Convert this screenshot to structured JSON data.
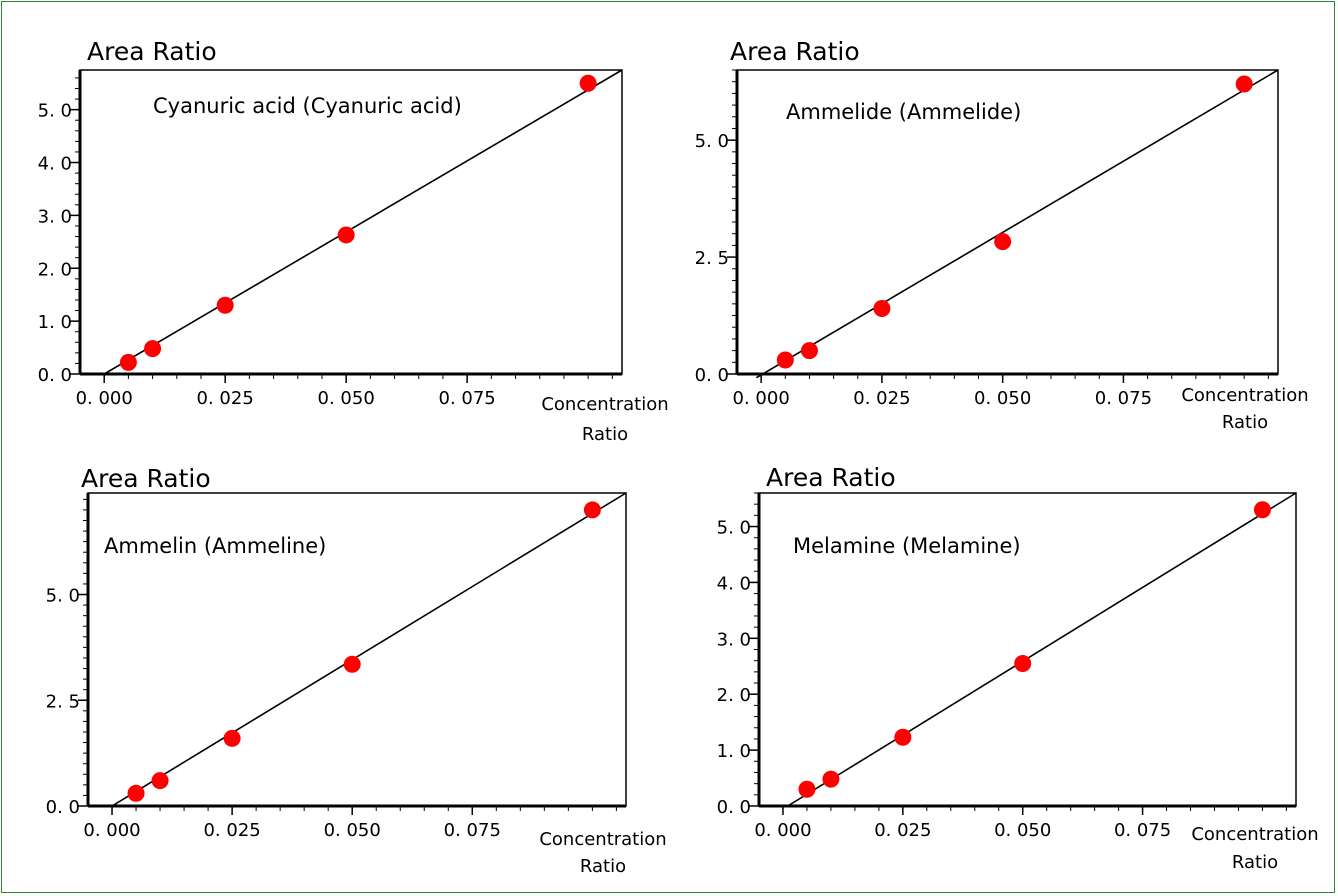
{
  "chart_data": [
    {
      "type": "scatter",
      "ylabel": "Area Ratio",
      "xlabel_lines": [
        "Concentration",
        "Ratio"
      ],
      "annotation": "Cyanuric acid (Cyanuric acid)",
      "xlim": [
        -0.005,
        0.107
      ],
      "ylim": [
        0,
        5.75
      ],
      "x_ticks": [
        0.0,
        0.025,
        0.05,
        0.075
      ],
      "x_tick_labels": [
        "0. 000",
        "0. 025",
        "0. 050",
        "0. 075"
      ],
      "y_ticks": [
        0.0,
        1.0,
        2.0,
        3.0,
        4.0,
        5.0
      ],
      "y_tick_labels": [
        "0. 0",
        "1. 0",
        "2. 0",
        "3. 0",
        "4. 0",
        "5. 0"
      ],
      "points": {
        "x": [
          0.005,
          0.01,
          0.025,
          0.05,
          0.1
        ],
        "y": [
          0.22,
          0.48,
          1.3,
          2.63,
          5.5
        ]
      },
      "fit_line": {
        "x": [
          0.0,
          0.107
        ],
        "y": [
          0.0,
          5.75
        ]
      },
      "marker_color": "#ff0000",
      "line_color": "#000000",
      "grid": false
    },
    {
      "type": "scatter",
      "ylabel": "Area Ratio",
      "xlabel_lines": [
        "Concentration",
        "Ratio"
      ],
      "annotation": "Ammelide (Ammelide)",
      "xlim": [
        -0.005,
        0.107
      ],
      "ylim": [
        0,
        6.5
      ],
      "x_ticks": [
        0.0,
        0.025,
        0.05,
        0.075
      ],
      "x_tick_labels": [
        "0. 000",
        "0. 025",
        "0. 050",
        "0. 075"
      ],
      "y_ticks": [
        0.0,
        2.5,
        5.0
      ],
      "y_tick_labels": [
        "0. 0",
        "2. 5",
        "5. 0"
      ],
      "points": {
        "x": [
          0.005,
          0.01,
          0.025,
          0.05,
          0.1
        ],
        "y": [
          0.3,
          0.5,
          1.4,
          2.83,
          6.2
        ]
      },
      "fit_line": {
        "x": [
          -0.001,
          0.107
        ],
        "y": [
          -0.08,
          6.5
        ]
      },
      "marker_color": "#ff0000",
      "line_color": "#000000",
      "grid": false
    },
    {
      "type": "scatter",
      "ylabel": "Area Ratio",
      "xlabel_lines": [
        "Concentration",
        "Ratio"
      ],
      "annotation": "Ammelin (Ammeline)",
      "xlim": [
        -0.005,
        0.107
      ],
      "ylim": [
        0,
        7.4
      ],
      "x_ticks": [
        0.0,
        0.025,
        0.05,
        0.075
      ],
      "x_tick_labels": [
        "0. 000",
        "0. 025",
        "0. 050",
        "0. 075"
      ],
      "y_ticks": [
        0.0,
        2.5,
        5.0
      ],
      "y_tick_labels": [
        "0. 0",
        "2. 5",
        "5. 0"
      ],
      "points": {
        "x": [
          0.005,
          0.01,
          0.025,
          0.05,
          0.1
        ],
        "y": [
          0.3,
          0.6,
          1.6,
          3.35,
          7.0
        ]
      },
      "fit_line": {
        "x": [
          0.0,
          0.107
        ],
        "y": [
          0.0,
          7.4
        ]
      },
      "marker_color": "#ff0000",
      "line_color": "#000000",
      "grid": false
    },
    {
      "type": "scatter",
      "ylabel": "Area Ratio",
      "xlabel_lines": [
        "Concentration",
        "Ratio"
      ],
      "annotation": "Melamine (Melamine)",
      "xlim": [
        -0.005,
        0.107
      ],
      "ylim": [
        0,
        5.6
      ],
      "x_ticks": [
        0.0,
        0.025,
        0.05,
        0.075
      ],
      "x_tick_labels": [
        "0. 000",
        "0. 025",
        "0. 050",
        "0. 075"
      ],
      "y_ticks": [
        0.0,
        1.0,
        2.0,
        3.0,
        4.0,
        5.0
      ],
      "y_tick_labels": [
        "0. 0",
        "1. 0",
        "2. 0",
        "3. 0",
        "4. 0",
        "5. 0"
      ],
      "points": {
        "x": [
          0.005,
          0.01,
          0.025,
          0.05,
          0.1
        ],
        "y": [
          0.3,
          0.48,
          1.23,
          2.55,
          5.3
        ]
      },
      "fit_line": {
        "x": [
          0.001,
          0.107
        ],
        "y": [
          0.0,
          5.6
        ]
      },
      "marker_color": "#ff0000",
      "line_color": "#000000",
      "grid": false
    }
  ]
}
